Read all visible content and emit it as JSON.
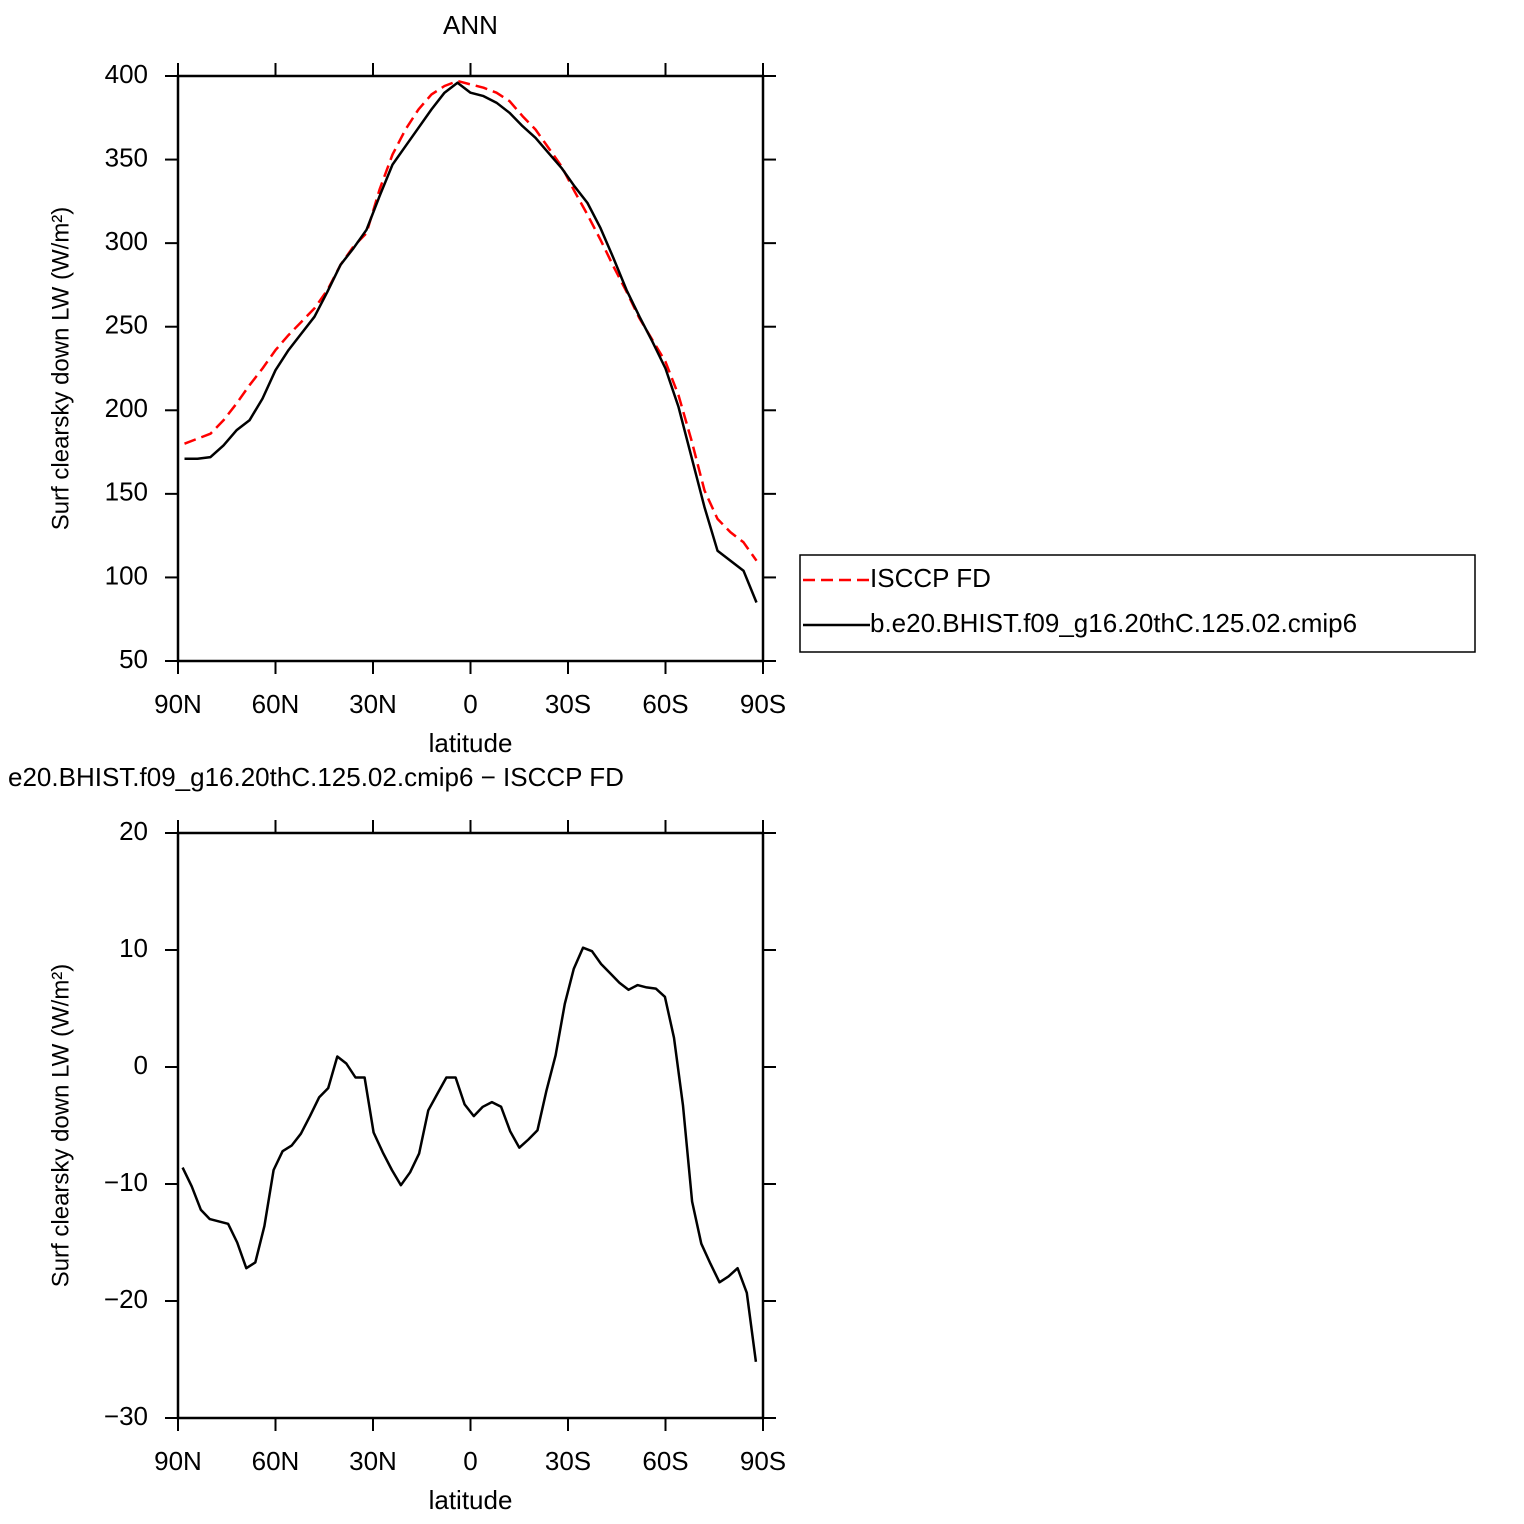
{
  "chart_data": [
    {
      "type": "line",
      "title": "ANN",
      "x_label": "latitude",
      "y_label": "Surf clearsky down LW (W/m²)",
      "x": [
        88,
        84,
        80,
        76,
        72,
        68,
        64,
        60,
        56,
        52,
        48,
        44,
        40,
        36,
        32,
        28,
        24,
        20,
        16,
        12,
        8,
        4,
        0,
        -4,
        -8,
        -12,
        -16,
        -20,
        -24,
        -28,
        -32,
        -36,
        -40,
        -44,
        -48,
        -52,
        -56,
        -60,
        -64,
        -68,
        -72,
        -76,
        -80,
        -84,
        -88
      ],
      "series": [
        {
          "name": "ISCCP FD",
          "color": "#ff0000",
          "dash": true,
          "values": [
            180,
            183,
            186,
            194,
            204,
            215,
            225,
            236,
            245,
            253,
            261,
            272,
            287,
            298,
            306,
            332,
            353,
            368,
            380,
            389,
            394,
            397,
            395,
            393,
            390,
            385,
            376,
            368,
            357,
            346,
            331,
            317,
            302,
            286,
            271,
            255,
            242,
            229,
            209,
            182,
            152,
            135,
            127,
            121,
            110
          ]
        },
        {
          "name": "b.e20.BHIST.f09_g16.20thC.125.02.cmip6",
          "color": "#000000",
          "dash": false,
          "values": [
            171,
            171,
            172,
            179,
            188,
            194,
            207,
            224,
            236,
            246,
            256,
            271,
            287,
            297,
            308,
            328,
            347,
            358,
            369,
            380,
            390,
            396,
            390,
            388,
            384,
            378,
            370,
            363,
            354,
            345,
            334,
            324,
            309,
            291,
            272,
            256,
            241,
            225,
            202,
            172,
            142,
            116,
            110,
            104,
            85
          ]
        }
      ],
      "xlim": [
        90,
        -90
      ],
      "xticks": [
        {
          "value": 90,
          "label": "90N"
        },
        {
          "value": 60,
          "label": "60N"
        },
        {
          "value": 30,
          "label": "30N"
        },
        0,
        {
          "value": -30,
          "label": "30S"
        },
        {
          "value": -60,
          "label": "60S"
        },
        {
          "value": -90,
          "label": "90S"
        }
      ],
      "ylim": [
        50,
        400
      ],
      "yticks": [
        50,
        100,
        150,
        200,
        250,
        300,
        350,
        400
      ],
      "legend": "right"
    },
    {
      "type": "line",
      "title": "e20.BHIST.f09_g16.20thC.125.02.cmip6 − ISCCP FD",
      "x_label": "latitude",
      "y_label": "Surf clearsky down LW (W/m²)",
      "x": [
        88.6,
        85.8,
        83,
        80.2,
        77.4,
        74.6,
        71.8,
        69,
        66.2,
        63.4,
        60.6,
        57.8,
        55,
        52.2,
        49.4,
        46.6,
        43.8,
        41,
        38.2,
        35.4,
        32.6,
        29.8,
        27,
        24.2,
        21.4,
        18.6,
        15.8,
        13,
        10.2,
        7.4,
        4.6,
        1.8,
        -1,
        -3.8,
        -6.6,
        -9.4,
        -12.2,
        -15,
        -17.8,
        -20.6,
        -23.4,
        -26.2,
        -29,
        -31.8,
        -34.6,
        -37.4,
        -40.2,
        -43,
        -45.8,
        -48.6,
        -51.4,
        -54.2,
        -57,
        -59.8,
        -62.6,
        -65.4,
        -68.2,
        -71,
        -73.8,
        -76.6,
        -79.4,
        -82.2,
        -85,
        -87.8
      ],
      "values": [
        -8.6,
        -10.2,
        -12.2,
        -13,
        -13.2,
        -13.4,
        -15,
        -17.2,
        -16.7,
        -13.6,
        -8.8,
        -7.2,
        -6.7,
        -5.7,
        -4.2,
        -2.6,
        -1.8,
        0.9,
        0.3,
        -0.9,
        -0.9,
        -5.6,
        -7.3,
        -8.8,
        -10.1,
        -9,
        -7.4,
        -3.7,
        -2.3,
        -0.9,
        -0.9,
        -3.2,
        -4.2,
        -3.4,
        -3,
        -3.4,
        -5.5,
        -6.9,
        -6.2,
        -5.4,
        -2,
        1,
        5.4,
        8.4,
        10.2,
        9.9,
        8.8,
        8,
        7.2,
        6.6,
        7,
        6.8,
        6.7,
        6,
        2.5,
        -3.3,
        -11.5,
        -15.1,
        -16.8,
        -18.4,
        -17.9,
        -17.2,
        -19.3,
        -25.2
      ],
      "color": "#000000",
      "xlim": [
        90,
        -90
      ],
      "xticks": [
        {
          "value": 90,
          "label": "90N"
        },
        {
          "value": 60,
          "label": "60N"
        },
        {
          "value": 30,
          "label": "30N"
        },
        0,
        {
          "value": -30,
          "label": "30S"
        },
        {
          "value": -60,
          "label": "60S"
        },
        {
          "value": -90,
          "label": "90S"
        }
      ],
      "ylim": [
        -30,
        20
      ],
      "yticks": [
        {
          "value": -30,
          "label": "−30"
        },
        {
          "value": -20,
          "label": "−20"
        },
        {
          "value": -10,
          "label": "−10"
        },
        0,
        10,
        20
      ]
    }
  ]
}
